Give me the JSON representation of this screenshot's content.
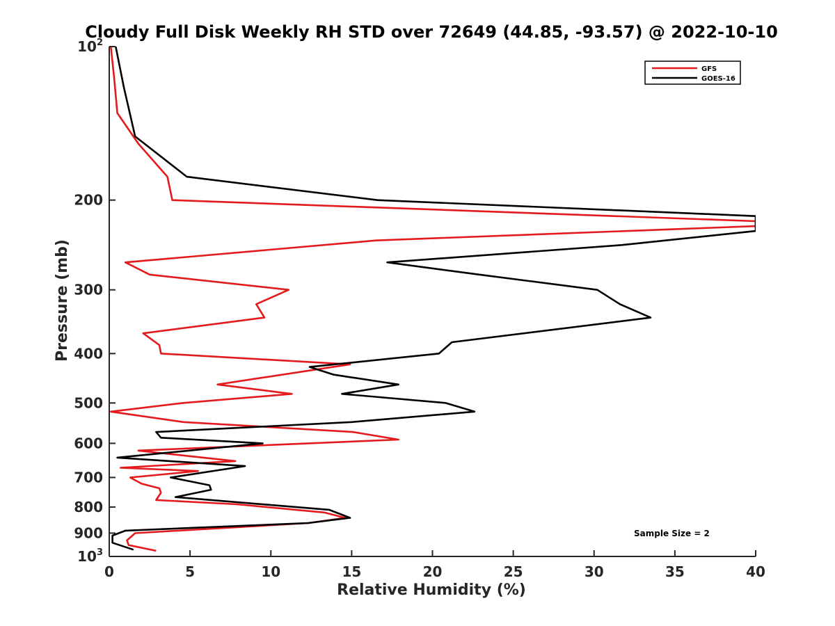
{
  "chart_data": {
    "type": "line",
    "title": "Cloudy Full Disk Weekly RH STD over 72649 (44.85, -93.57) @ 2022-10-10",
    "xlabel": "Relative Humidity (%)",
    "ylabel": "Pressure (mb)",
    "xlim": [
      0,
      40
    ],
    "ylim": [
      100,
      1000
    ],
    "y_scale": "log",
    "y_reversed": true,
    "grid": false,
    "legend_position": "top-right",
    "x_ticks": [
      "0",
      "5",
      "10",
      "15",
      "20",
      "25",
      "30",
      "35",
      "40"
    ],
    "y_ticks": [
      {
        "value": 100,
        "base": "10",
        "exp": "2"
      },
      {
        "value": 200,
        "label": "200"
      },
      {
        "value": 300,
        "label": "300"
      },
      {
        "value": 400,
        "label": "400"
      },
      {
        "value": 500,
        "label": "500"
      },
      {
        "value": 600,
        "label": "600"
      },
      {
        "value": 700,
        "label": "700"
      },
      {
        "value": 800,
        "label": "800"
      },
      {
        "value": 900,
        "label": "900"
      },
      {
        "value": 1000,
        "base": "10",
        "exp": "3"
      }
    ],
    "annotation": "Sample Size = 2",
    "series": [
      {
        "name": "GFS",
        "color": "#e41a1c",
        "points": [
          [
            0.1,
            100
          ],
          [
            0.3,
            115
          ],
          [
            0.5,
            135
          ],
          [
            1.8,
            155
          ],
          [
            3.6,
            180
          ],
          [
            3.9,
            200
          ],
          [
            40,
            220
          ],
          [
            40,
            225
          ],
          [
            16.5,
            240
          ],
          [
            1.0,
            265
          ],
          [
            2.5,
            280
          ],
          [
            11.1,
            300
          ],
          [
            9.1,
            320
          ],
          [
            9.6,
            340
          ],
          [
            2.1,
            365
          ],
          [
            3.1,
            385
          ],
          [
            3.2,
            400
          ],
          [
            14.9,
            420
          ],
          [
            6.7,
            460
          ],
          [
            11.3,
            480
          ],
          [
            4.6,
            500
          ],
          [
            0.1,
            520
          ],
          [
            4.6,
            545
          ],
          [
            15.1,
            570
          ],
          [
            17.9,
            590
          ],
          [
            1.8,
            620
          ],
          [
            7.8,
            650
          ],
          [
            0.7,
            670
          ],
          [
            5.5,
            680
          ],
          [
            1.3,
            700
          ],
          [
            2.0,
            720
          ],
          [
            3.1,
            735
          ],
          [
            3.2,
            750
          ],
          [
            2.9,
            775
          ],
          [
            7.9,
            790
          ],
          [
            13.3,
            820
          ],
          [
            14.6,
            840
          ],
          [
            12.3,
            860
          ],
          [
            1.6,
            900
          ],
          [
            1.1,
            930
          ],
          [
            1.2,
            950
          ],
          [
            2.9,
            975
          ]
        ]
      },
      {
        "name": "GOES-16",
        "color": "#000000",
        "points": [
          [
            0.4,
            100
          ],
          [
            0.9,
            120
          ],
          [
            1.6,
            150
          ],
          [
            4.8,
            180
          ],
          [
            16.6,
            200
          ],
          [
            40,
            215
          ],
          [
            40,
            230
          ],
          [
            31.7,
            245
          ],
          [
            17.2,
            265
          ],
          [
            22.9,
            280
          ],
          [
            30.2,
            300
          ],
          [
            31.6,
            320
          ],
          [
            33.5,
            340
          ],
          [
            21.2,
            380
          ],
          [
            20.4,
            400
          ],
          [
            12.4,
            425
          ],
          [
            13.9,
            440
          ],
          [
            17.9,
            460
          ],
          [
            14.4,
            480
          ],
          [
            20.8,
            500
          ],
          [
            22.6,
            520
          ],
          [
            15.0,
            545
          ],
          [
            2.9,
            570
          ],
          [
            3.2,
            585
          ],
          [
            9.5,
            600
          ],
          [
            0.5,
            640
          ],
          [
            8.4,
            665
          ],
          [
            3.8,
            700
          ],
          [
            6.2,
            725
          ],
          [
            6.3,
            740
          ],
          [
            4.1,
            765
          ],
          [
            13.6,
            810
          ],
          [
            14.9,
            840
          ],
          [
            12.3,
            860
          ],
          [
            1.0,
            890
          ],
          [
            0.2,
            910
          ],
          [
            0.2,
            940
          ],
          [
            1.5,
            970
          ]
        ]
      }
    ]
  }
}
